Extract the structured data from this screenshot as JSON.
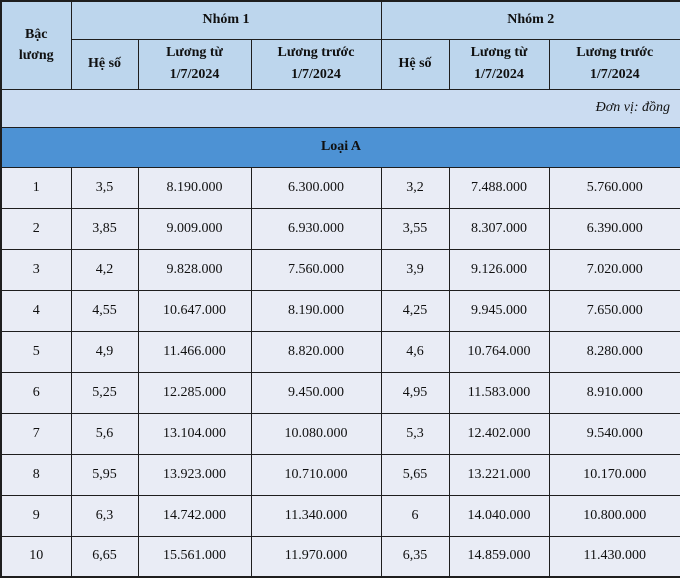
{
  "header": {
    "bac_luong_line1": "Bậc",
    "bac_luong_line2": "lương",
    "nhom1": "Nhóm 1",
    "nhom2": "Nhóm 2",
    "he_so": "Hệ số",
    "luong_tu_line1": "Lương từ",
    "luong_tu_line2": "1/7/2024",
    "luong_truoc_line1": "Lương trước",
    "luong_truoc_line2": "1/7/2024",
    "unit_note": "Đơn vị: đồng",
    "section_title": "Loại A"
  },
  "rows": [
    [
      "1",
      "3,5",
      "8.190.000",
      "6.300.000",
      "3,2",
      "7.488.000",
      "5.760.000"
    ],
    [
      "2",
      "3,85",
      "9.009.000",
      "6.930.000",
      "3,55",
      "8.307.000",
      "6.390.000"
    ],
    [
      "3",
      "4,2",
      "9.828.000",
      "7.560.000",
      "3,9",
      "9.126.000",
      "7.020.000"
    ],
    [
      "4",
      "4,55",
      "10.647.000",
      "8.190.000",
      "4,25",
      "9.945.000",
      "7.650.000"
    ],
    [
      "5",
      "4,9",
      "11.466.000",
      "8.820.000",
      "4,6",
      "10.764.000",
      "8.280.000"
    ],
    [
      "6",
      "5,25",
      "12.285.000",
      "9.450.000",
      "4,95",
      "11.583.000",
      "8.910.000"
    ],
    [
      "7",
      "5,6",
      "13.104.000",
      "10.080.000",
      "5,3",
      "12.402.000",
      "9.540.000"
    ],
    [
      "8",
      "5,95",
      "13.923.000",
      "10.710.000",
      "5,65",
      "13.221.000",
      "10.170.000"
    ],
    [
      "9",
      "6,3",
      "14.742.000",
      "11.340.000",
      "6",
      "14.040.000",
      "10.800.000"
    ],
    [
      "10",
      "6,65",
      "15.561.000",
      "11.970.000",
      "6,35",
      "14.859.000",
      "11.430.000"
    ]
  ],
  "colors": {
    "header_bg": "#bdd6ed",
    "unit_bg": "#cbdcf1",
    "section_bg": "#4d92d4",
    "row_bg": "#e9ecf5",
    "border": "#1e1e1e",
    "text": "#101010"
  }
}
